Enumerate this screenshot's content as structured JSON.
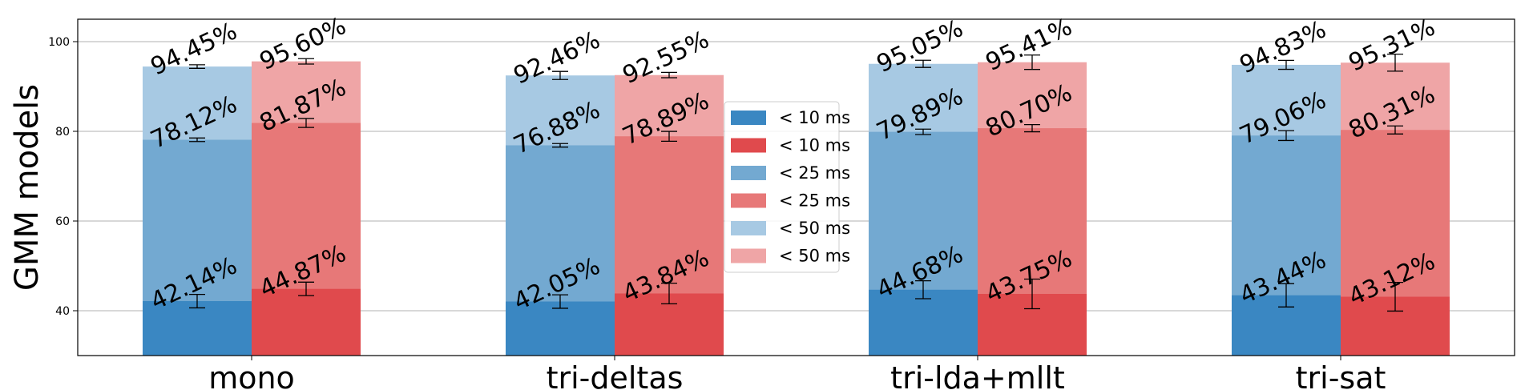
{
  "chart_data": {
    "type": "bar",
    "stacked": true,
    "ylabel": "GMM models",
    "ylim": [
      30,
      105
    ],
    "yticks": [
      40,
      60,
      80,
      100
    ],
    "grid": "horizontal",
    "categories": [
      "mono",
      "tri-deltas",
      "tri-lda+mllt",
      "tri-sat"
    ],
    "groups": [
      {
        "name": "blue",
        "layers": [
          {
            "legend": "< 10 ms",
            "color": "#3a87c2",
            "values": [
              42.14,
              42.05,
              44.68,
              43.44
            ],
            "labels": [
              "42.14%",
              "42.05%",
              "44.68%",
              "43.44%"
            ],
            "err": [
              1.5,
              1.5,
              2.0,
              2.6
            ]
          },
          {
            "legend": "< 25 ms",
            "color": "#73a9d1",
            "values": [
              78.12,
              76.88,
              79.89,
              79.06
            ],
            "labels": [
              "78.12%",
              "76.88%",
              "79.89%",
              "79.06%"
            ],
            "err": [
              0.4,
              0.4,
              0.6,
              1.1
            ]
          },
          {
            "legend": "< 50 ms",
            "color": "#a7c9e3",
            "values": [
              94.45,
              92.46,
              95.05,
              94.83
            ],
            "labels": [
              "94.45%",
              "92.46%",
              "95.05%",
              "94.83%"
            ],
            "err": [
              0.4,
              0.9,
              0.8,
              1.0
            ]
          }
        ]
      },
      {
        "name": "red",
        "layers": [
          {
            "legend": "< 10 ms",
            "color": "#e04a4d",
            "values": [
              44.87,
              43.84,
              43.75,
              43.12
            ],
            "labels": [
              "44.87%",
              "43.84%",
              "43.75%",
              "43.12%"
            ],
            "err": [
              1.5,
              2.3,
              3.3,
              3.2
            ]
          },
          {
            "legend": "< 25 ms",
            "color": "#e77878",
            "values": [
              81.87,
              78.89,
              80.7,
              80.31
            ],
            "labels": [
              "81.87%",
              "78.89%",
              "80.70%",
              "80.31%"
            ],
            "err": [
              1.0,
              1.1,
              0.8,
              0.9
            ]
          },
          {
            "legend": "< 50 ms",
            "color": "#efa5a6",
            "values": [
              95.6,
              92.55,
              95.41,
              95.31
            ],
            "labels": [
              "95.60%",
              "92.55%",
              "95.41%",
              "95.31%"
            ],
            "err": [
              0.6,
              0.6,
              1.6,
              1.9
            ]
          }
        ]
      }
    ],
    "legend": {
      "placement": "center",
      "entries": [
        {
          "label": "< 10 ms",
          "color": "#3a87c2"
        },
        {
          "label": "< 10 ms",
          "color": "#e04a4d"
        },
        {
          "label": "< 25 ms",
          "color": "#73a9d1"
        },
        {
          "label": "< 25 ms",
          "color": "#e77878"
        },
        {
          "label": "< 50 ms",
          "color": "#a7c9e3"
        },
        {
          "label": "< 50 ms",
          "color": "#efa5a6"
        }
      ]
    }
  }
}
